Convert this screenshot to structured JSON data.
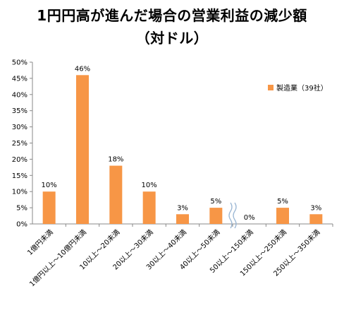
{
  "title_line1": "1円円高が進んだ場合の営業利益の減少額",
  "title_line2": "（対ドル）",
  "chart_data": {
    "type": "bar",
    "categories": [
      "1億円未満",
      "1億円以上～10億円未満",
      "10以上～20未満",
      "20以上～30未満",
      "30以上～40未満",
      "40以上～50未満",
      "50以上～150未満",
      "150以上～250未満",
      "250以上～350未満"
    ],
    "series": [
      {
        "name": "製造業（39社）",
        "values": [
          10,
          46,
          18,
          10,
          3,
          5,
          0,
          5,
          3
        ]
      }
    ],
    "data_labels": [
      "10%",
      "46%",
      "18%",
      "10%",
      "3%",
      "5%",
      "0%",
      "5%",
      "3%"
    ],
    "y_ticks": [
      "0%",
      "5%",
      "10%",
      "15%",
      "20%",
      "25%",
      "30%",
      "35%",
      "40%",
      "45%",
      "50%"
    ],
    "ylim": [
      0,
      50
    ],
    "legend_position": "top-right",
    "axis_break_after_category_index": 5,
    "grid": false,
    "bar_color": "#F79646"
  }
}
